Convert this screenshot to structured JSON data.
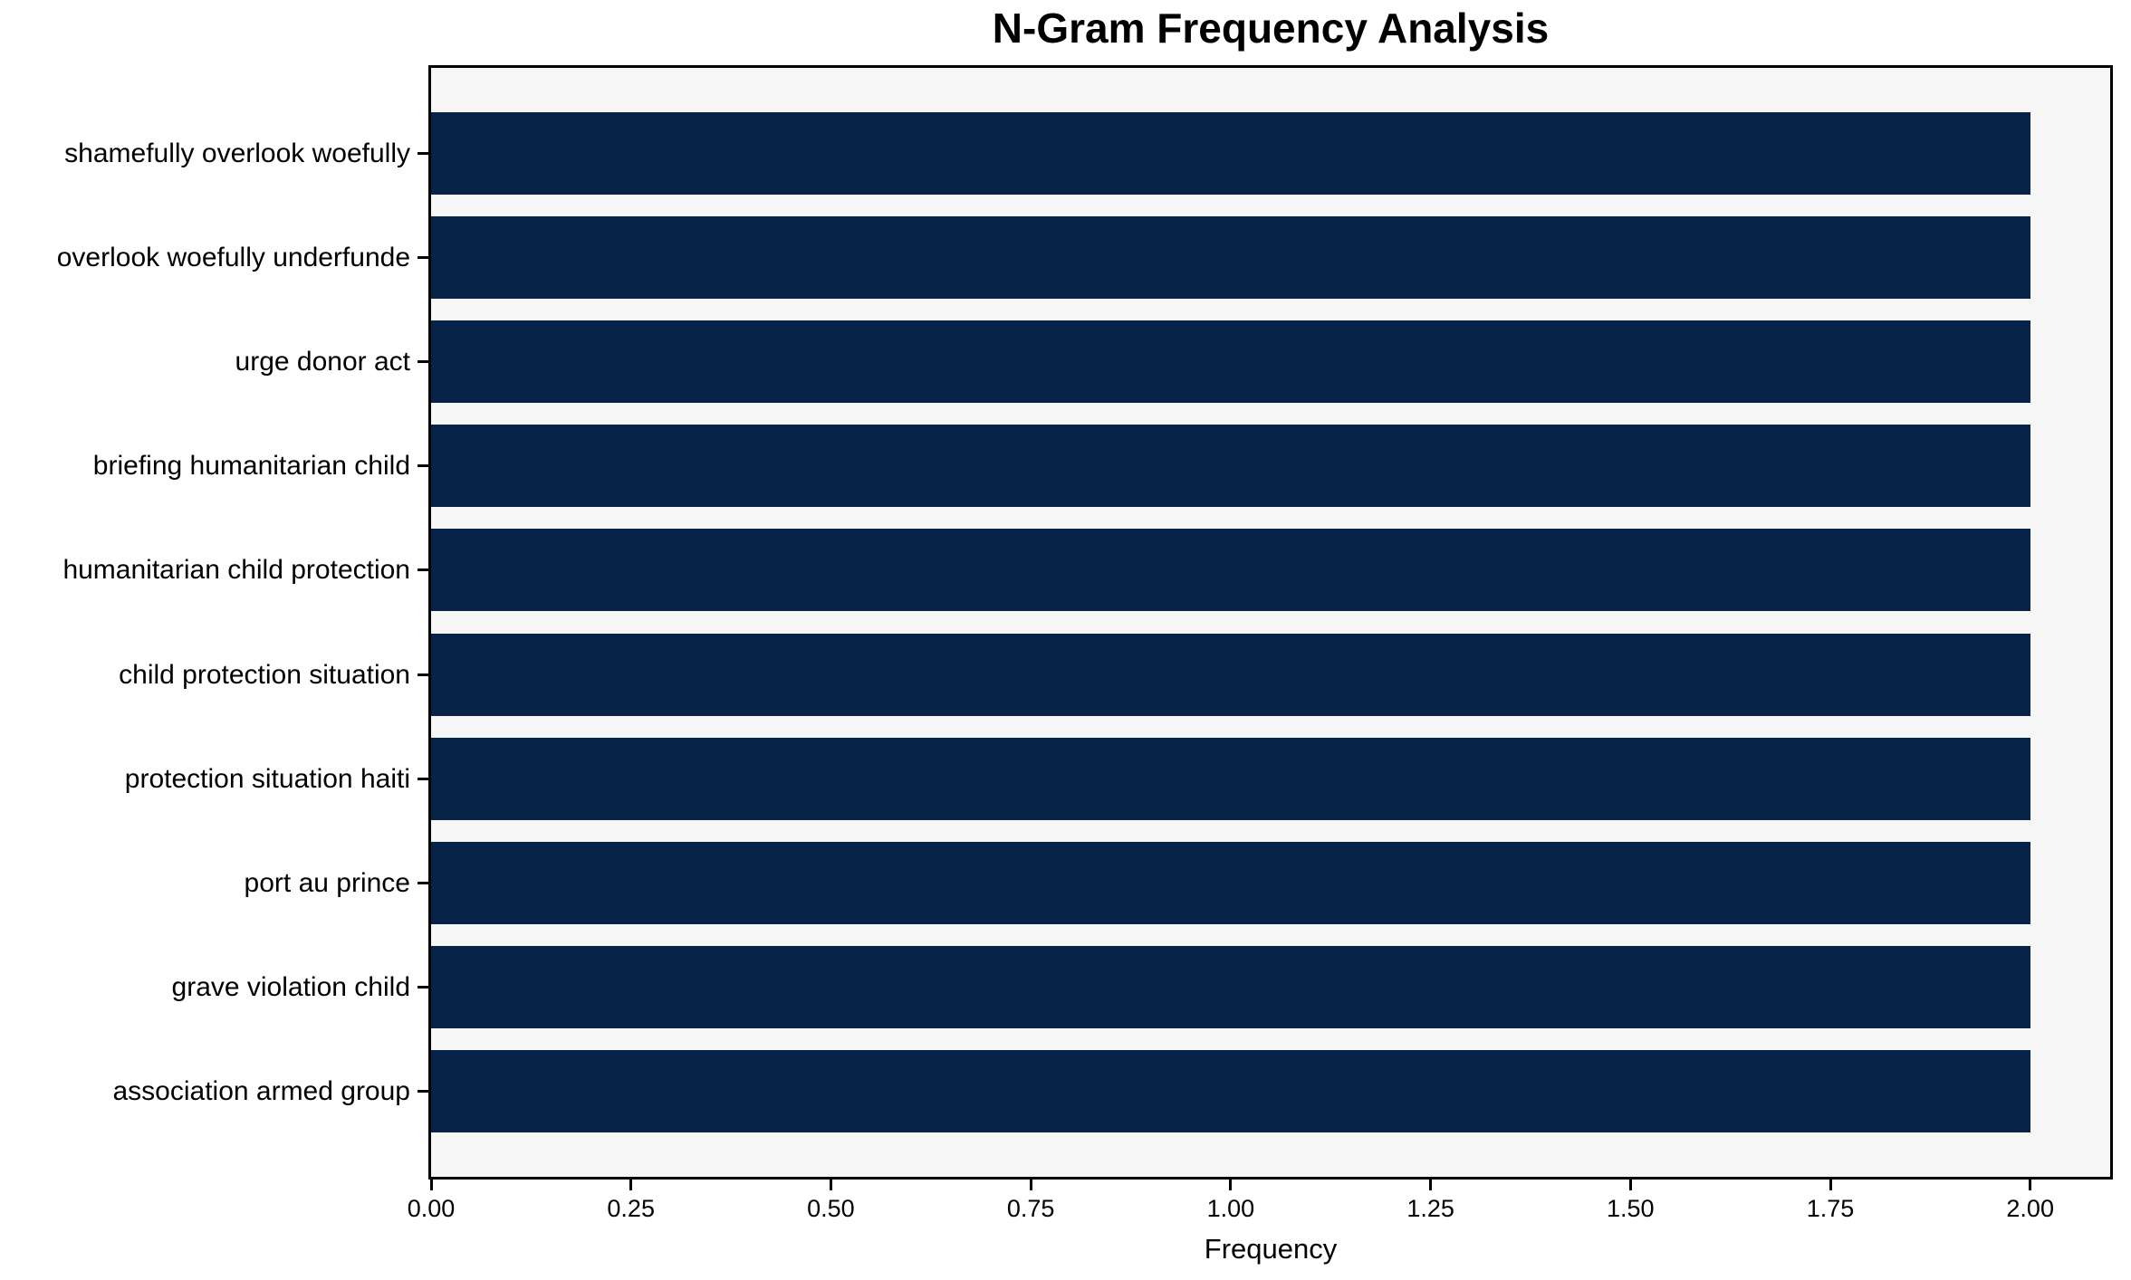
{
  "chart_data": {
    "type": "bar",
    "orientation": "horizontal",
    "title": "N-Gram Frequency Analysis",
    "xlabel": "Frequency",
    "ylabel": "",
    "categories": [
      "shamefully overlook woefully",
      "overlook woefully underfunde",
      "urge donor act",
      "briefing humanitarian child",
      "humanitarian child protection",
      "child protection situation",
      "protection situation haiti",
      "port au prince",
      "grave violation child",
      "association armed group"
    ],
    "values": [
      2,
      2,
      2,
      2,
      2,
      2,
      2,
      2,
      2,
      2
    ],
    "xlim": [
      0,
      2.1
    ],
    "x_tick_labels": [
      "0.00",
      "0.25",
      "0.50",
      "0.75",
      "1.00",
      "1.25",
      "1.50",
      "1.75",
      "2.00"
    ],
    "grid": false,
    "legend": null,
    "colors": {
      "bar": "#072448",
      "plot_background": "#f6f6f6",
      "figure_background": "#ffffff",
      "axis": "#000000",
      "text": "#000000"
    }
  }
}
